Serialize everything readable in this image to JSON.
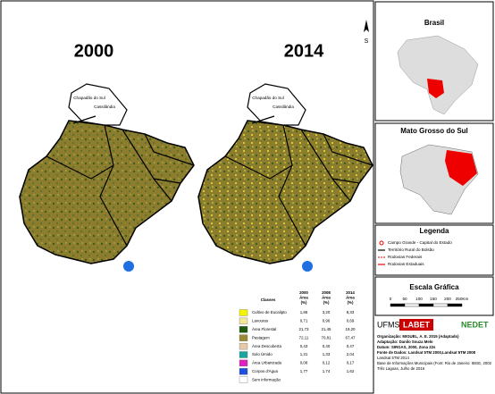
{
  "maps": {
    "left_title": "2000",
    "right_title": "2014",
    "north": "S",
    "labels": [
      "Chapadão do Sul",
      "Cassilândia"
    ]
  },
  "locator": {
    "brazil_title": "Brasil",
    "state_title": "Mato Grosso do Sul"
  },
  "legend": {
    "title": "Legenda",
    "items": [
      "Campo Grande - Capital do Estado",
      "Território Rural do Bolsão",
      "Rodovias Federais",
      "Rodovias Estaduais"
    ]
  },
  "scale": {
    "title": "Escala Gráfica",
    "ticks": [
      "0",
      "50",
      "100",
      "150",
      "200",
      "250Km"
    ]
  },
  "table": {
    "headers": [
      [
        "Classes"
      ],
      [
        "2000",
        "Área",
        "(%)"
      ],
      [
        "2008",
        "Área",
        "(%)"
      ],
      [
        "2014",
        "Área",
        "(%)"
      ]
    ],
    "rows": [
      [
        "Cultivo de Eucalipto",
        "1,86",
        "3,20",
        "8,33"
      ],
      [
        "Lavouras",
        "0,71",
        "0,96",
        "0,69"
      ],
      [
        "Área Florestal",
        "21,73",
        "21,45",
        "19,20"
      ],
      [
        "Pastagem",
        "72,11",
        "70,81",
        "67,47"
      ],
      [
        "Área Descoberta",
        "0,43",
        "0,40",
        "0,47"
      ],
      [
        "Solo Úmido",
        "1,31",
        "1,33",
        "2,04"
      ],
      [
        "Área Urbanizada",
        "0,08",
        "0,12",
        "0,17"
      ],
      [
        "Corpos d'Água",
        "1,77",
        "1,74",
        "1,62"
      ],
      [
        "Sem informação"
      ]
    ]
  },
  "logos": [
    "UFMS",
    "LABET",
    "NEDET"
  ],
  "credits": [
    "Organização: MIGUEL, A. E. 2015 (Adaptado)",
    "Adaptação: Danilo Souza Melo",
    "Datum: SIRGAS, 2000, Zona 22s",
    "Fonte de Dados: Landsat 5TM 2000,Landsat 5TM 2008",
    "Landsat 5TM 2014",
    "Base de Informações Municipais (Font: Rio de Janeiro: IBGE, 2002",
    "Três Lagoas, Julho de 2016"
  ]
}
